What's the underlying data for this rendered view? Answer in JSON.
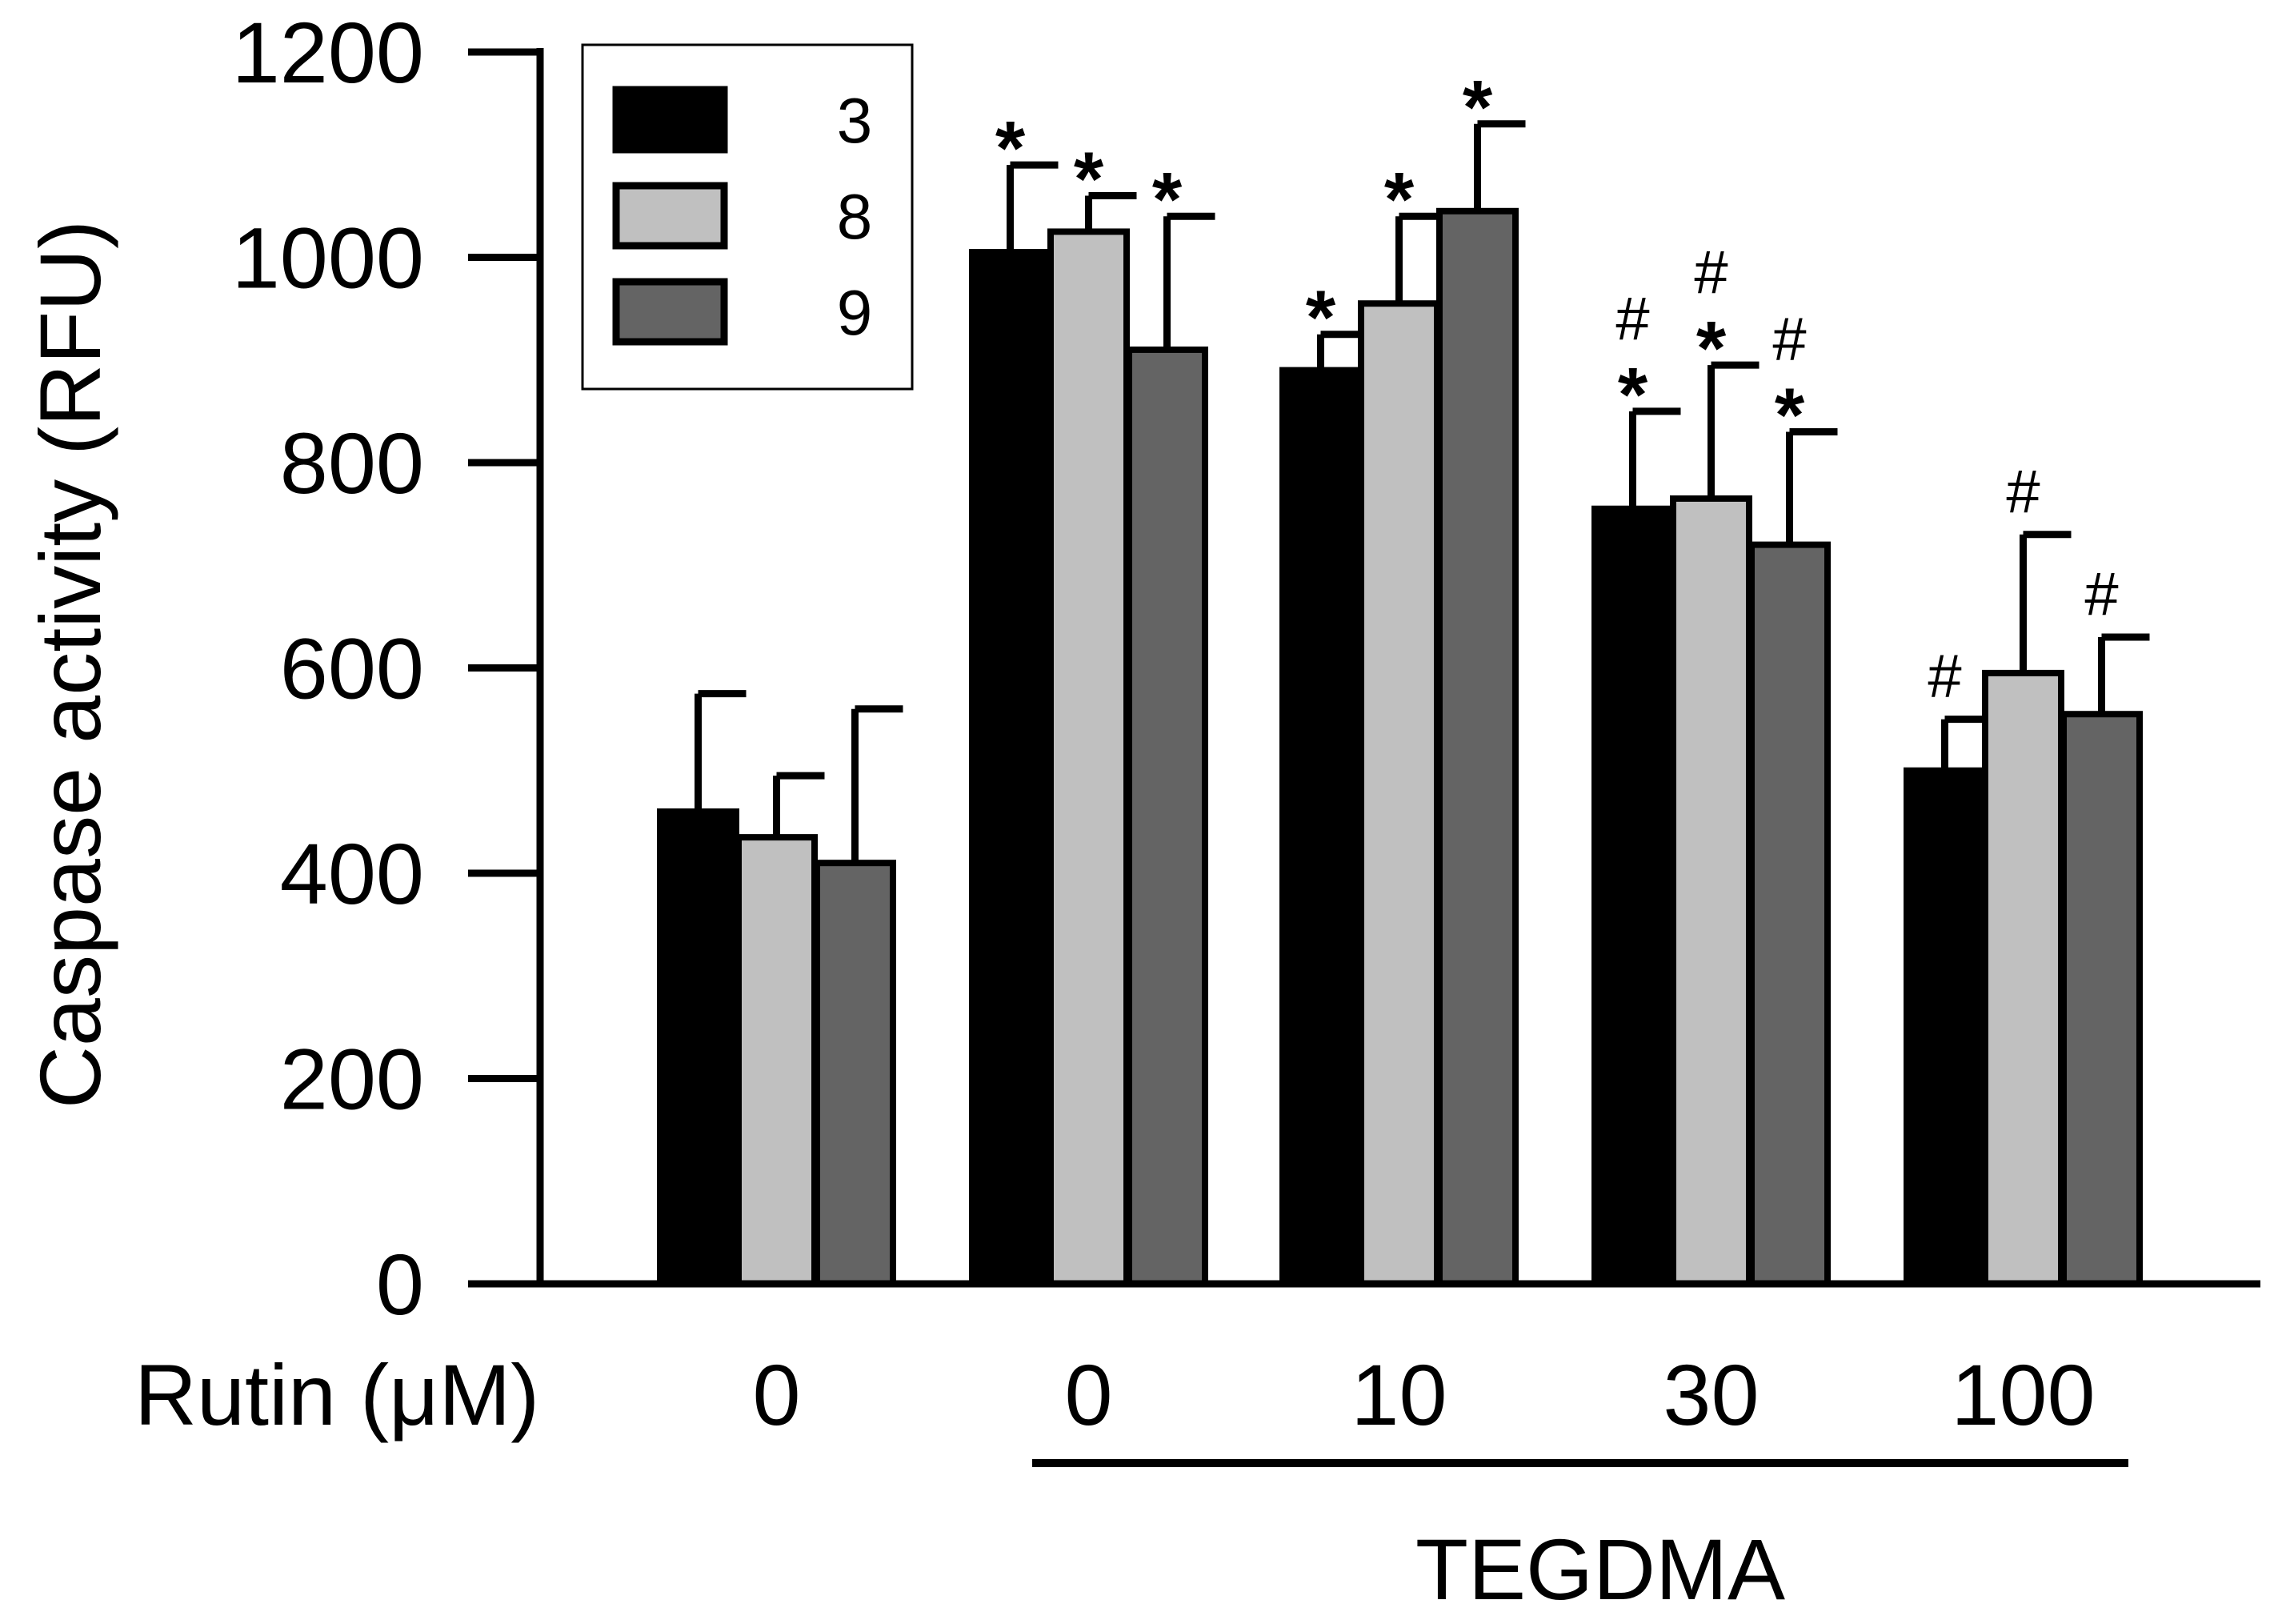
{
  "chart_data": {
    "type": "bar",
    "ylabel": "Caspase activity (RFU)",
    "xlabel": "Rutin (μM)",
    "group_label": "TEGDMA",
    "categories": [
      "0",
      "0",
      "10",
      "30",
      "100"
    ],
    "ylim": [
      0,
      1200
    ],
    "yticks": [
      0,
      200,
      400,
      600,
      800,
      1000,
      1200
    ],
    "legend_position": "top-left",
    "series": [
      {
        "name": "3",
        "color": "#000000",
        "values": [
          460,
          1005,
          890,
          755,
          500
        ],
        "errors": [
          115,
          85,
          35,
          95,
          50
        ],
        "marks": [
          "",
          "*",
          "*",
          "#\n*",
          "#"
        ]
      },
      {
        "name": "8",
        "color": "#c0c0c0",
        "values": [
          435,
          1025,
          955,
          765,
          595
        ],
        "errors": [
          60,
          35,
          85,
          130,
          135
        ],
        "marks": [
          "",
          "*",
          "*",
          "#\n*",
          "#"
        ]
      },
      {
        "name": "9",
        "color": "#646464",
        "values": [
          410,
          910,
          1045,
          720,
          555
        ],
        "errors": [
          150,
          130,
          85,
          110,
          75
        ],
        "marks": [
          "",
          "*",
          "*",
          "#\n*",
          "#"
        ]
      }
    ]
  }
}
